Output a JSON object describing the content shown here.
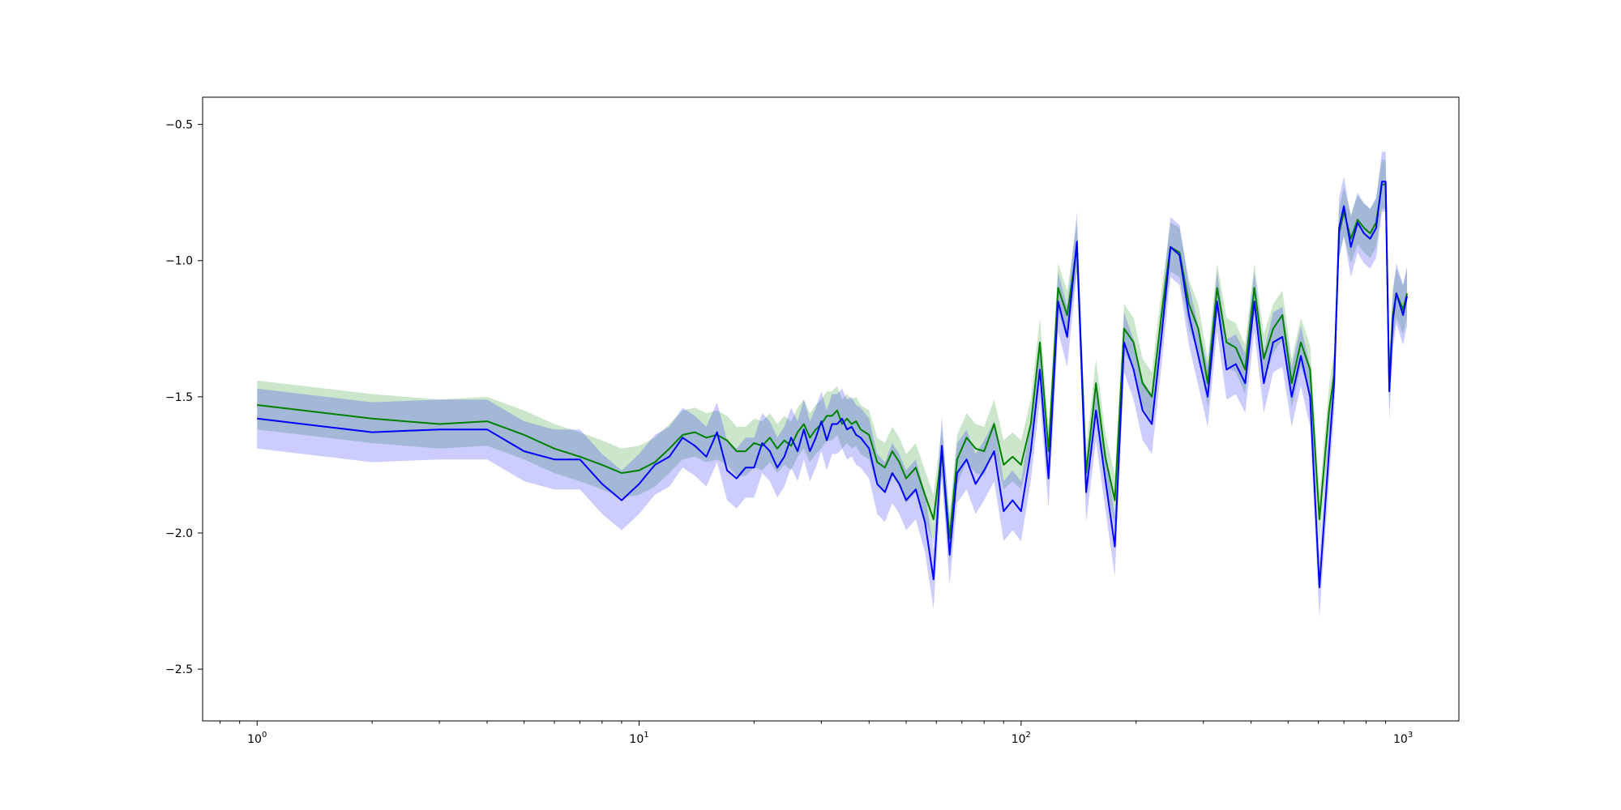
{
  "chart_data": {
    "type": "line",
    "title": "",
    "xlabel": "",
    "ylabel": "",
    "xscale": "log",
    "xlim": [
      0.72,
      1400
    ],
    "ylim": [
      -2.69,
      -0.4
    ],
    "grid": false,
    "legend": "none",
    "x_ticks": [
      {
        "value": 1,
        "base": "10",
        "exp": "0"
      },
      {
        "value": 10,
        "base": "10",
        "exp": "1"
      },
      {
        "value": 100,
        "base": "10",
        "exp": "2"
      },
      {
        "value": 1000,
        "base": "10",
        "exp": "3"
      }
    ],
    "y_ticks": [
      {
        "value": -0.5,
        "label": "−0.5"
      },
      {
        "value": -1.0,
        "label": "−1.0"
      },
      {
        "value": -1.5,
        "label": "−1.5"
      },
      {
        "value": -2.0,
        "label": "−2.0"
      },
      {
        "value": -2.5,
        "label": "−2.5"
      }
    ],
    "series": [
      {
        "color": "#008000",
        "band_color": "#008000",
        "band_opacity": 0.2,
        "band_halfwidth": 0.09,
        "x": [
          1,
          2,
          3,
          4,
          5,
          6,
          7,
          8,
          9,
          10,
          11,
          12,
          13,
          14,
          15,
          16,
          17,
          18,
          19,
          20,
          21,
          22,
          23,
          24,
          25,
          26,
          27,
          28,
          29,
          30,
          31,
          32,
          33,
          34,
          35,
          36,
          37,
          38,
          40,
          42,
          44,
          46,
          48,
          50,
          53,
          56,
          59,
          62,
          65,
          68,
          72,
          76,
          80,
          85,
          90,
          95,
          100,
          106,
          112,
          118,
          125,
          132,
          140,
          148,
          157,
          166,
          176,
          186,
          197,
          208,
          220,
          233,
          246,
          260,
          275,
          291,
          308,
          326,
          345,
          365,
          386,
          408,
          432,
          457,
          483,
          511,
          540,
          571,
          604,
          640,
          660,
          680,
          700,
          730,
          760,
          790,
          820,
          850,
          880,
          900,
          920,
          940,
          960,
          980,
          1000,
          1024
        ],
        "y": [
          -1.53,
          -1.58,
          -1.6,
          -1.59,
          -1.64,
          -1.69,
          -1.72,
          -1.75,
          -1.78,
          -1.77,
          -1.74,
          -1.69,
          -1.64,
          -1.63,
          -1.65,
          -1.64,
          -1.66,
          -1.7,
          -1.7,
          -1.67,
          -1.68,
          -1.65,
          -1.69,
          -1.66,
          -1.68,
          -1.63,
          -1.6,
          -1.65,
          -1.62,
          -1.6,
          -1.57,
          -1.57,
          -1.55,
          -1.6,
          -1.58,
          -1.6,
          -1.59,
          -1.62,
          -1.64,
          -1.74,
          -1.76,
          -1.7,
          -1.74,
          -1.8,
          -1.76,
          -1.86,
          -1.95,
          -1.7,
          -2.02,
          -1.73,
          -1.65,
          -1.69,
          -1.7,
          -1.6,
          -1.75,
          -1.72,
          -1.75,
          -1.6,
          -1.3,
          -1.7,
          -1.1,
          -1.2,
          -0.95,
          -1.78,
          -1.45,
          -1.72,
          -1.88,
          -1.25,
          -1.3,
          -1.45,
          -1.5,
          -1.2,
          -0.95,
          -0.97,
          -1.16,
          -1.25,
          -1.45,
          -1.1,
          -1.3,
          -1.32,
          -1.4,
          -1.1,
          -1.36,
          -1.25,
          -1.2,
          -1.45,
          -1.3,
          -1.4,
          -1.95,
          -1.55,
          -1.42,
          -0.9,
          -0.82,
          -0.92,
          -0.85,
          -0.88,
          -0.9,
          -0.86,
          -0.72,
          -0.72,
          -1.45,
          -1.2,
          -1.12,
          -1.15,
          -1.18,
          -1.12
        ]
      },
      {
        "color": "#0000ff",
        "band_color": "#0000ff",
        "band_opacity": 0.2,
        "band_halfwidth": 0.11,
        "x": [
          1,
          2,
          3,
          4,
          5,
          6,
          7,
          8,
          9,
          10,
          11,
          12,
          13,
          14,
          15,
          16,
          17,
          18,
          19,
          20,
          21,
          22,
          23,
          24,
          25,
          26,
          27,
          28,
          29,
          30,
          31,
          32,
          33,
          34,
          35,
          36,
          37,
          38,
          40,
          42,
          44,
          46,
          48,
          50,
          53,
          56,
          59,
          62,
          65,
          68,
          72,
          76,
          80,
          85,
          90,
          95,
          100,
          106,
          112,
          118,
          125,
          132,
          140,
          148,
          157,
          166,
          176,
          186,
          197,
          208,
          220,
          233,
          246,
          260,
          275,
          291,
          308,
          326,
          345,
          365,
          386,
          408,
          432,
          457,
          483,
          511,
          540,
          571,
          604,
          640,
          660,
          680,
          700,
          730,
          760,
          790,
          820,
          850,
          880,
          900,
          920,
          940,
          960,
          980,
          1000,
          1024
        ],
        "y": [
          -1.58,
          -1.63,
          -1.62,
          -1.62,
          -1.7,
          -1.73,
          -1.73,
          -1.82,
          -1.88,
          -1.82,
          -1.75,
          -1.72,
          -1.65,
          -1.68,
          -1.72,
          -1.63,
          -1.77,
          -1.8,
          -1.76,
          -1.76,
          -1.67,
          -1.7,
          -1.76,
          -1.72,
          -1.65,
          -1.7,
          -1.62,
          -1.7,
          -1.65,
          -1.59,
          -1.66,
          -1.6,
          -1.6,
          -1.58,
          -1.62,
          -1.61,
          -1.64,
          -1.65,
          -1.69,
          -1.82,
          -1.85,
          -1.78,
          -1.82,
          -1.88,
          -1.84,
          -1.96,
          -2.17,
          -1.68,
          -2.08,
          -1.78,
          -1.73,
          -1.82,
          -1.77,
          -1.7,
          -1.92,
          -1.88,
          -1.92,
          -1.7,
          -1.4,
          -1.8,
          -1.15,
          -1.28,
          -0.93,
          -1.85,
          -1.55,
          -1.8,
          -2.05,
          -1.3,
          -1.4,
          -1.55,
          -1.6,
          -1.28,
          -0.95,
          -0.98,
          -1.2,
          -1.35,
          -1.5,
          -1.15,
          -1.4,
          -1.38,
          -1.45,
          -1.15,
          -1.45,
          -1.3,
          -1.28,
          -1.5,
          -1.35,
          -1.5,
          -2.2,
          -1.7,
          -1.45,
          -0.88,
          -0.8,
          -0.95,
          -0.86,
          -0.9,
          -0.92,
          -0.88,
          -0.71,
          -0.71,
          -1.48,
          -1.22,
          -1.12,
          -1.16,
          -1.2,
          -1.13
        ]
      }
    ]
  }
}
